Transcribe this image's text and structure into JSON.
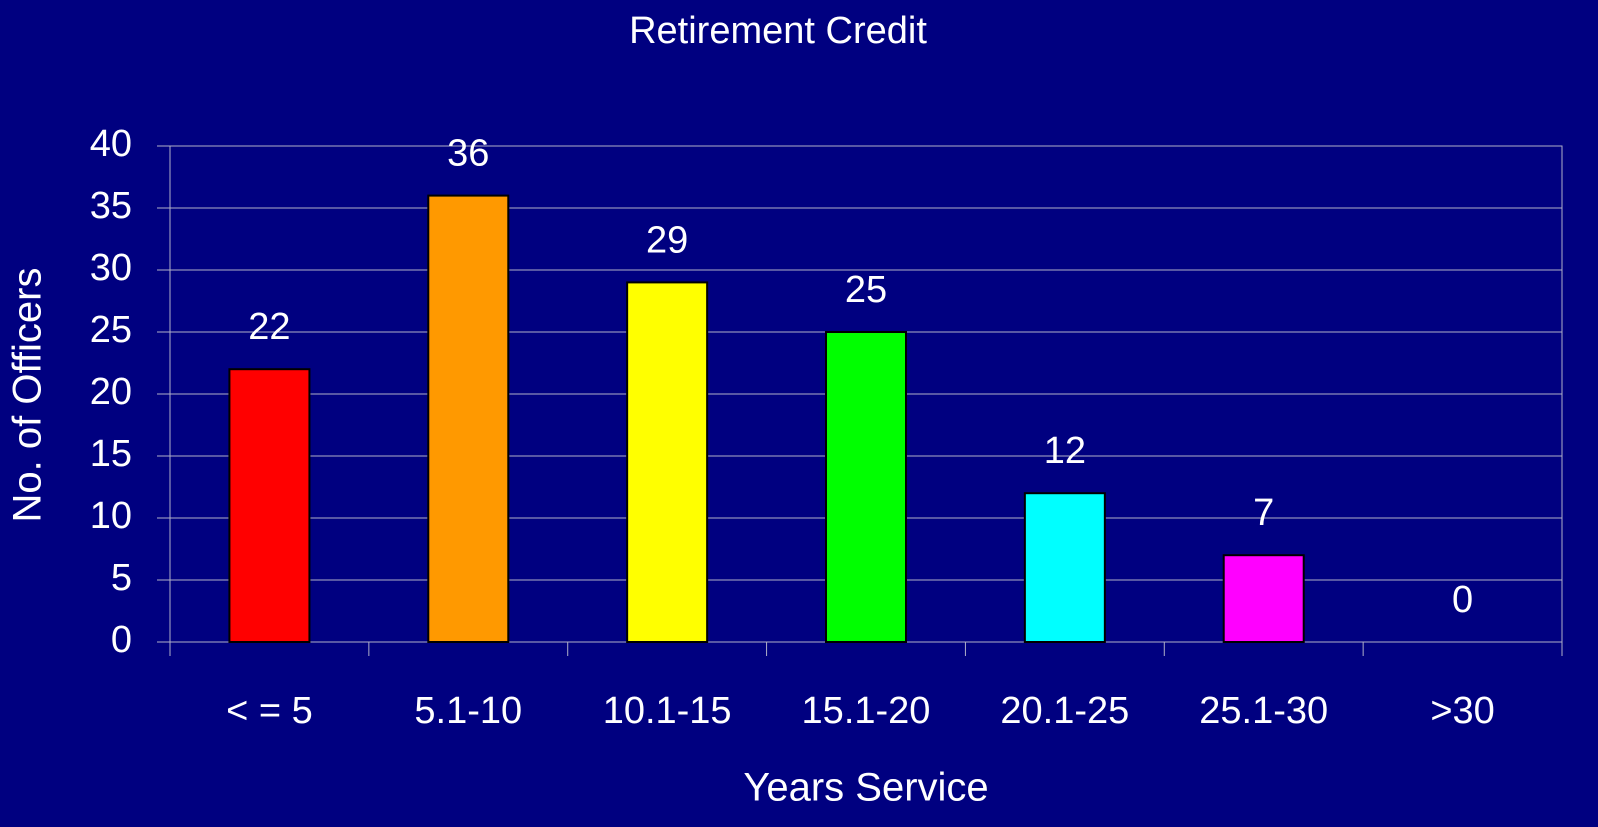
{
  "chart_data": {
    "type": "bar",
    "title": "Retirement Credit",
    "x_label": "Years Service",
    "y_label": "No. of Officers",
    "categories": [
      "< = 5",
      "5.1-10",
      "10.1-15",
      "15.1-20",
      "20.1-25",
      "25.1-30",
      ">30"
    ],
    "values": [
      22,
      36,
      29,
      25,
      12,
      7,
      0
    ],
    "colors": [
      "#ff0000",
      "#ff9900",
      "#ffff00",
      "#00ff00",
      "#00ffff",
      "#ff00ff",
      "#9999ff"
    ],
    "ylim": [
      0,
      40
    ],
    "yticks": [
      0,
      5,
      10,
      15,
      20,
      25,
      30,
      35,
      40
    ],
    "grid": true
  }
}
